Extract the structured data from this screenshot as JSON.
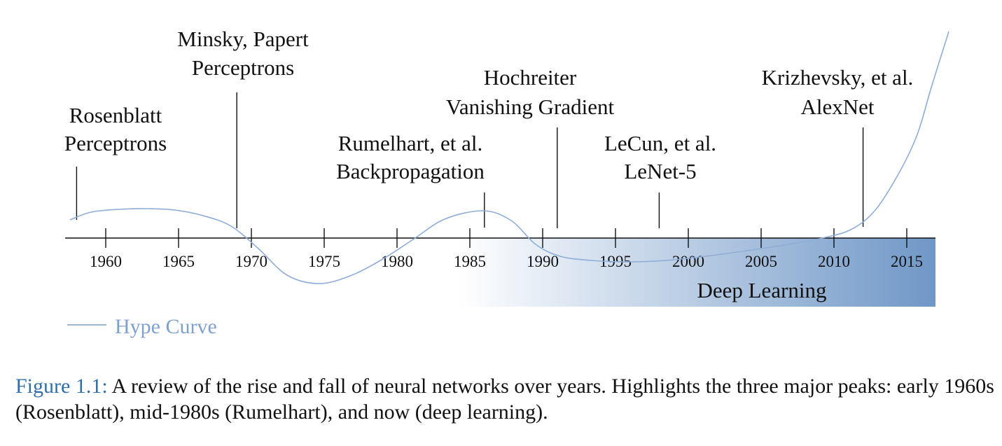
{
  "timeline": {
    "years": [
      "1960",
      "1965",
      "1970",
      "1975",
      "1980",
      "1985",
      "1990",
      "1995",
      "2000",
      "2005",
      "2010",
      "2015"
    ],
    "era": {
      "label": "Deep Learning",
      "gradient_start_color": "#ffffff",
      "gradient_end_color": "#6f97c7"
    },
    "curve_color": "#8eaed8",
    "events": [
      {
        "year": 1958,
        "lines": [
          "Rosenblatt",
          "Perceptrons"
        ]
      },
      {
        "year": 1969,
        "lines": [
          "Minsky,  Papert",
          "Perceptrons"
        ]
      },
      {
        "year": 1986,
        "lines": [
          "Rumelhart, et al.",
          "Backpropagation"
        ]
      },
      {
        "year": 1991,
        "lines": [
          "Hochreiter",
          "Vanishing Gradient"
        ]
      },
      {
        "year": 1998,
        "lines": [
          "LeCun, et al.",
          "LeNet-5"
        ]
      },
      {
        "year": 2012,
        "lines": [
          "Krizhevsky, et al.",
          "AlexNet"
        ]
      }
    ]
  },
  "legend": {
    "label": "Hype Curve",
    "color": "#7fa1cf"
  },
  "caption": {
    "figure_number": "Figure 1.1:",
    "text": " A review of the rise and fall of neural networks over years. Highlights the three major peaks: early 1960s (Rosenblatt), mid-1980s (Rumelhart), and now (deep learning)."
  }
}
